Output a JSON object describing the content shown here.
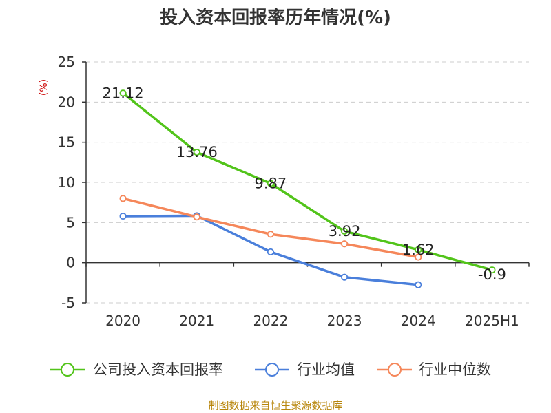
{
  "chart_data": {
    "type": "line",
    "title": "投入资本回报率历年情况(%)",
    "ylabel": "(%)",
    "xlabel": "",
    "categories": [
      "2020",
      "2021",
      "2022",
      "2023",
      "2024",
      "2025H1"
    ],
    "ylim": [
      -5,
      25
    ],
    "yticks": [
      -5,
      0,
      5,
      10,
      15,
      20,
      25
    ],
    "grid": true,
    "legend_position": "bottom",
    "series": [
      {
        "name": "公司投入资本回报率",
        "color": "#52c41a",
        "values": [
          21.12,
          13.76,
          9.87,
          3.92,
          1.62,
          -0.9
        ],
        "labels": [
          "21.12",
          "13.76",
          "9.87",
          "3.92",
          "1.62",
          "-0.9"
        ]
      },
      {
        "name": "行业均值",
        "color": "#4a7fdb",
        "values": [
          5.8,
          5.85,
          1.35,
          -1.8,
          -2.75,
          null
        ]
      },
      {
        "name": "行业中位数",
        "color": "#f5875a",
        "values": [
          8.0,
          5.7,
          3.55,
          2.35,
          0.7,
          null
        ]
      }
    ],
    "source": "制图数据来自恒生聚源数据库"
  }
}
